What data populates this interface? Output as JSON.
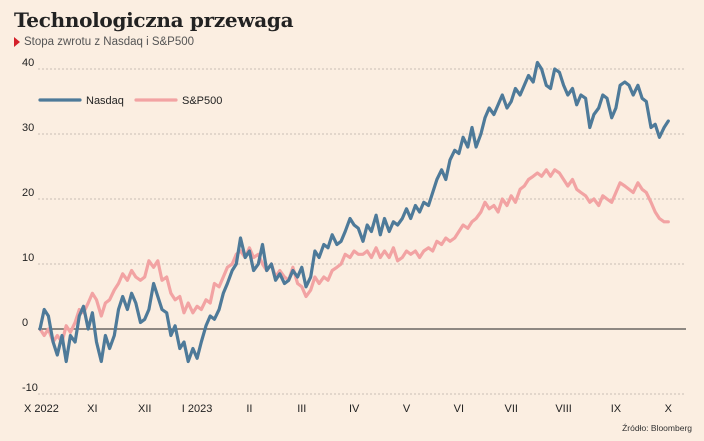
{
  "header": {
    "title": "Technologiczna przewaga",
    "subtitle": "Stopa zwrotu z Nasdaq i S&P500"
  },
  "source": "Źródło: Bloomberg",
  "colors": {
    "background": "#fbeee1",
    "nasdaq": "#4e7a99",
    "sp500": "#f2a3a3",
    "subtitle_marker": "#d4202a",
    "gridline": "#b9b0a6",
    "zero_line": "#222222"
  },
  "chart_data": {
    "type": "line",
    "title": "Technologiczna przewaga",
    "subtitle": "Stopa zwrotu z Nasdaq i S&P500",
    "xlabel": "",
    "ylabel": "",
    "ylim": [
      -10,
      40
    ],
    "xlim": [
      0,
      12.3
    ],
    "yticks": [
      -10,
      0,
      10,
      20,
      30,
      40
    ],
    "grid": "horizontal dashed",
    "legend": "top-left",
    "x_ticks": [
      {
        "label": "X 2022",
        "x": 0
      },
      {
        "label": "XI",
        "x": 1
      },
      {
        "label": "XII",
        "x": 2
      },
      {
        "label": "I 2023",
        "x": 3
      },
      {
        "label": "II",
        "x": 4
      },
      {
        "label": "III",
        "x": 5
      },
      {
        "label": "IV",
        "x": 6
      },
      {
        "label": "V",
        "x": 7
      },
      {
        "label": "VI",
        "x": 8
      },
      {
        "label": "VII",
        "x": 9
      },
      {
        "label": "VIII",
        "x": 10
      },
      {
        "label": "IX",
        "x": 11
      },
      {
        "label": "X",
        "x": 12
      }
    ],
    "series": [
      {
        "name": "Nasdaq",
        "color": "#4e7a99",
        "points": [
          [
            0.0,
            0
          ],
          [
            0.08,
            3
          ],
          [
            0.16,
            2
          ],
          [
            0.25,
            -2
          ],
          [
            0.33,
            -4
          ],
          [
            0.42,
            -1
          ],
          [
            0.5,
            -5
          ],
          [
            0.58,
            -1
          ],
          [
            0.67,
            -2
          ],
          [
            0.75,
            2
          ],
          [
            0.83,
            3.5
          ],
          [
            0.92,
            0
          ],
          [
            1.0,
            2.5
          ],
          [
            1.08,
            -2
          ],
          [
            1.17,
            -5
          ],
          [
            1.25,
            -1
          ],
          [
            1.33,
            -3
          ],
          [
            1.42,
            -1
          ],
          [
            1.5,
            3
          ],
          [
            1.58,
            5
          ],
          [
            1.67,
            3
          ],
          [
            1.75,
            5.5
          ],
          [
            1.83,
            4
          ],
          [
            1.92,
            1
          ],
          [
            2.0,
            1.5
          ],
          [
            2.08,
            3
          ],
          [
            2.17,
            7
          ],
          [
            2.25,
            5
          ],
          [
            2.33,
            3
          ],
          [
            2.42,
            2.5
          ],
          [
            2.5,
            -1
          ],
          [
            2.58,
            0.5
          ],
          [
            2.67,
            -3
          ],
          [
            2.75,
            -2
          ],
          [
            2.83,
            -5
          ],
          [
            2.92,
            -3
          ],
          [
            3.0,
            -4.5
          ],
          [
            3.08,
            -2
          ],
          [
            3.17,
            0.5
          ],
          [
            3.25,
            2
          ],
          [
            3.33,
            1.5
          ],
          [
            3.42,
            3
          ],
          [
            3.5,
            5.5
          ],
          [
            3.58,
            7
          ],
          [
            3.67,
            9
          ],
          [
            3.75,
            10
          ],
          [
            3.83,
            14
          ],
          [
            3.92,
            11
          ],
          [
            4.0,
            12
          ],
          [
            4.08,
            9
          ],
          [
            4.17,
            10
          ],
          [
            4.25,
            13
          ],
          [
            4.33,
            9
          ],
          [
            4.42,
            10
          ],
          [
            4.5,
            7.5
          ],
          [
            4.58,
            8.5
          ],
          [
            4.67,
            7
          ],
          [
            4.75,
            7.5
          ],
          [
            4.83,
            9
          ],
          [
            4.92,
            8
          ],
          [
            5.0,
            9.5
          ],
          [
            5.08,
            6.5
          ],
          [
            5.17,
            8
          ],
          [
            5.25,
            12
          ],
          [
            5.33,
            11
          ],
          [
            5.42,
            13
          ],
          [
            5.5,
            12.5
          ],
          [
            5.58,
            14.5
          ],
          [
            5.67,
            13
          ],
          [
            5.75,
            13.5
          ],
          [
            5.83,
            15
          ],
          [
            5.92,
            17
          ],
          [
            6.0,
            16
          ],
          [
            6.08,
            15.5
          ],
          [
            6.17,
            13.5
          ],
          [
            6.25,
            16
          ],
          [
            6.33,
            15
          ],
          [
            6.42,
            17.5
          ],
          [
            6.5,
            14.5
          ],
          [
            6.58,
            17
          ],
          [
            6.67,
            15
          ],
          [
            6.75,
            16.5
          ],
          [
            6.83,
            16
          ],
          [
            6.92,
            17
          ],
          [
            7.0,
            18.5
          ],
          [
            7.08,
            17
          ],
          [
            7.17,
            19
          ],
          [
            7.25,
            18
          ],
          [
            7.33,
            19.5
          ],
          [
            7.42,
            19
          ],
          [
            7.5,
            21
          ],
          [
            7.58,
            23
          ],
          [
            7.67,
            24.5
          ],
          [
            7.75,
            23
          ],
          [
            7.83,
            26
          ],
          [
            7.92,
            27.5
          ],
          [
            8.0,
            27
          ],
          [
            8.08,
            29.5
          ],
          [
            8.17,
            28
          ],
          [
            8.25,
            31
          ],
          [
            8.33,
            28
          ],
          [
            8.42,
            30
          ],
          [
            8.5,
            32.5
          ],
          [
            8.58,
            34
          ],
          [
            8.67,
            33
          ],
          [
            8.75,
            34.5
          ],
          [
            8.83,
            36
          ],
          [
            8.92,
            34
          ],
          [
            9.0,
            35
          ],
          [
            9.08,
            37
          ],
          [
            9.17,
            36
          ],
          [
            9.25,
            37.5
          ],
          [
            9.33,
            39
          ],
          [
            9.42,
            38
          ],
          [
            9.5,
            41
          ],
          [
            9.58,
            40
          ],
          [
            9.67,
            37.5
          ],
          [
            9.75,
            37
          ],
          [
            9.83,
            40
          ],
          [
            9.92,
            39.5
          ],
          [
            10.0,
            37.5
          ],
          [
            10.08,
            36
          ],
          [
            10.17,
            37
          ],
          [
            10.25,
            34.5
          ],
          [
            10.33,
            36
          ],
          [
            10.42,
            35.5
          ],
          [
            10.5,
            31
          ],
          [
            10.58,
            33
          ],
          [
            10.67,
            34
          ],
          [
            10.75,
            36
          ],
          [
            10.83,
            35.5
          ],
          [
            10.92,
            32.5
          ],
          [
            11.0,
            34
          ],
          [
            11.08,
            37.5
          ],
          [
            11.17,
            38
          ],
          [
            11.25,
            37.5
          ],
          [
            11.33,
            36
          ],
          [
            11.42,
            37.5
          ],
          [
            11.5,
            35.5
          ],
          [
            11.58,
            35
          ],
          [
            11.67,
            31
          ],
          [
            11.75,
            31.5
          ],
          [
            11.83,
            29.5
          ],
          [
            11.92,
            31
          ],
          [
            12.0,
            32
          ]
        ]
      },
      {
        "name": "S&P500",
        "color": "#f2a3a3",
        "points": [
          [
            0.0,
            0
          ],
          [
            0.08,
            -1
          ],
          [
            0.16,
            0
          ],
          [
            0.25,
            -2
          ],
          [
            0.33,
            -1
          ],
          [
            0.42,
            -2
          ],
          [
            0.5,
            0.5
          ],
          [
            0.58,
            -0.5
          ],
          [
            0.67,
            1
          ],
          [
            0.75,
            3
          ],
          [
            0.83,
            2.5
          ],
          [
            0.92,
            4
          ],
          [
            1.0,
            5.5
          ],
          [
            1.08,
            4.5
          ],
          [
            1.17,
            2
          ],
          [
            1.25,
            4
          ],
          [
            1.33,
            4.5
          ],
          [
            1.42,
            6
          ],
          [
            1.5,
            7
          ],
          [
            1.58,
            8.5
          ],
          [
            1.67,
            7.5
          ],
          [
            1.75,
            9
          ],
          [
            1.83,
            8
          ],
          [
            1.92,
            7.5
          ],
          [
            2.0,
            8
          ],
          [
            2.08,
            10.5
          ],
          [
            2.17,
            9.5
          ],
          [
            2.25,
            10.5
          ],
          [
            2.33,
            7.5
          ],
          [
            2.42,
            8
          ],
          [
            2.5,
            5.5
          ],
          [
            2.58,
            4.5
          ],
          [
            2.67,
            5
          ],
          [
            2.75,
            2.5
          ],
          [
            2.83,
            4
          ],
          [
            2.92,
            2.5
          ],
          [
            3.0,
            3.5
          ],
          [
            3.08,
            3
          ],
          [
            3.17,
            4.5
          ],
          [
            3.25,
            4
          ],
          [
            3.33,
            7
          ],
          [
            3.42,
            6.5
          ],
          [
            3.5,
            8
          ],
          [
            3.58,
            9.5
          ],
          [
            3.67,
            10
          ],
          [
            3.75,
            11.5
          ],
          [
            3.83,
            12
          ],
          [
            3.92,
            11
          ],
          [
            4.0,
            12.5
          ],
          [
            4.08,
            11
          ],
          [
            4.17,
            11.5
          ],
          [
            4.25,
            10
          ],
          [
            4.33,
            9
          ],
          [
            4.42,
            10
          ],
          [
            4.5,
            8
          ],
          [
            4.58,
            9
          ],
          [
            4.67,
            8
          ],
          [
            4.75,
            7.5
          ],
          [
            4.83,
            9.5
          ],
          [
            4.92,
            7
          ],
          [
            5.0,
            6.5
          ],
          [
            5.08,
            5
          ],
          [
            5.17,
            6
          ],
          [
            5.25,
            8
          ],
          [
            5.33,
            7
          ],
          [
            5.42,
            8
          ],
          [
            5.5,
            7.5
          ],
          [
            5.58,
            9
          ],
          [
            5.67,
            9.5
          ],
          [
            5.75,
            10
          ],
          [
            5.83,
            11.5
          ],
          [
            5.92,
            11
          ],
          [
            6.0,
            12
          ],
          [
            6.08,
            11.5
          ],
          [
            6.17,
            11.5
          ],
          [
            6.25,
            12
          ],
          [
            6.33,
            11
          ],
          [
            6.42,
            12.5
          ],
          [
            6.5,
            11
          ],
          [
            6.58,
            12
          ],
          [
            6.67,
            11
          ],
          [
            6.75,
            12.5
          ],
          [
            6.83,
            10.5
          ],
          [
            6.92,
            11
          ],
          [
            7.0,
            12
          ],
          [
            7.08,
            11.5
          ],
          [
            7.17,
            12
          ],
          [
            7.25,
            11
          ],
          [
            7.33,
            12
          ],
          [
            7.42,
            12.5
          ],
          [
            7.5,
            12
          ],
          [
            7.58,
            13.5
          ],
          [
            7.67,
            13
          ],
          [
            7.75,
            14
          ],
          [
            7.83,
            13.5
          ],
          [
            7.92,
            14
          ],
          [
            8.0,
            15
          ],
          [
            8.08,
            16
          ],
          [
            8.17,
            15.5
          ],
          [
            8.25,
            16.5
          ],
          [
            8.33,
            17
          ],
          [
            8.42,
            18
          ],
          [
            8.5,
            19.5
          ],
          [
            8.58,
            18.5
          ],
          [
            8.67,
            19
          ],
          [
            8.75,
            18
          ],
          [
            8.83,
            20
          ],
          [
            8.92,
            19
          ],
          [
            9.0,
            20.5
          ],
          [
            9.08,
            19.5
          ],
          [
            9.17,
            21.5
          ],
          [
            9.25,
            22
          ],
          [
            9.33,
            23
          ],
          [
            9.42,
            23.5
          ],
          [
            9.5,
            24
          ],
          [
            9.58,
            23.5
          ],
          [
            9.67,
            24.5
          ],
          [
            9.75,
            23.5
          ],
          [
            9.83,
            24.5
          ],
          [
            9.92,
            24
          ],
          [
            10.0,
            23
          ],
          [
            10.08,
            22
          ],
          [
            10.17,
            23
          ],
          [
            10.25,
            21.5
          ],
          [
            10.33,
            21
          ],
          [
            10.42,
            20.5
          ],
          [
            10.5,
            19.5
          ],
          [
            10.58,
            20
          ],
          [
            10.67,
            19
          ],
          [
            10.75,
            20.5
          ],
          [
            10.83,
            20
          ],
          [
            10.92,
            19.5
          ],
          [
            11.0,
            21
          ],
          [
            11.08,
            22.5
          ],
          [
            11.17,
            22
          ],
          [
            11.25,
            21.5
          ],
          [
            11.33,
            21
          ],
          [
            11.42,
            22.5
          ],
          [
            11.5,
            21.5
          ],
          [
            11.58,
            21
          ],
          [
            11.67,
            19.5
          ],
          [
            11.75,
            18
          ],
          [
            11.83,
            17
          ],
          [
            11.92,
            16.5
          ],
          [
            12.0,
            16.5
          ]
        ]
      }
    ]
  }
}
